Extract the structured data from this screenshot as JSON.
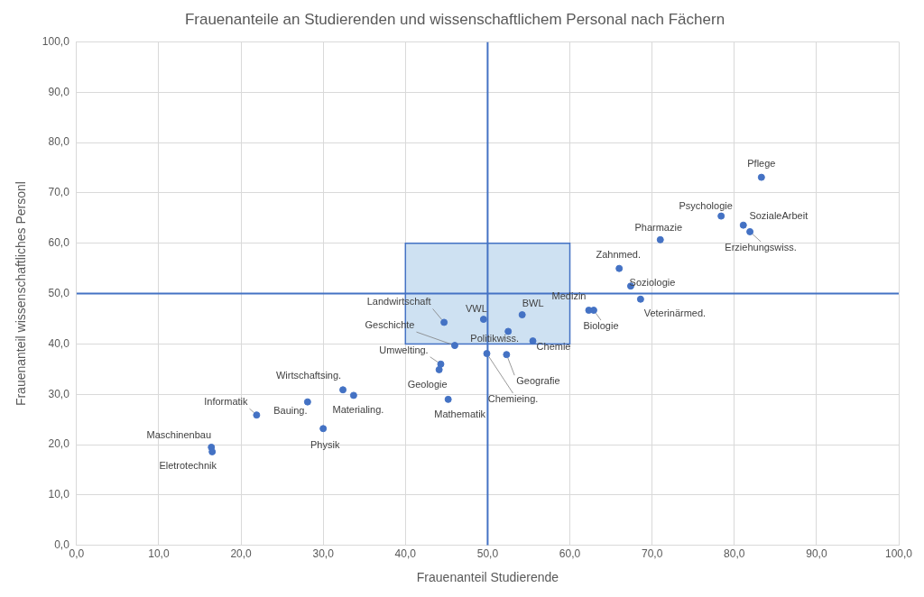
{
  "chart_data": {
    "type": "scatter",
    "title": "Frauenanteile an Studierenden und wissenschaftlichem Personal nach Fächern",
    "x_label": "Frauenanteil Studierende",
    "y_label": "Frauenanteil wissenschaftliches Personl",
    "color": "#4472c4",
    "marker": "circle",
    "grid": true,
    "labels": [
      "Pflege",
      "Psychologie",
      "SozialeArbeit",
      "Erziehungswiss.",
      "Pharmazie",
      "Zahnmed.",
      "Soziologie",
      "Veterinärmed.",
      "Medizin",
      "Biologie",
      "Landwirtschaft",
      "VWL",
      "BWL",
      "Geschichte",
      "Politikwiss.",
      "Chemie",
      "Umwelting.",
      "Geologie",
      "Geografie",
      "Chemieing.",
      "Mathematik",
      "Wirtschaftsing.",
      "Materialing.",
      "Bauing.",
      "Physik",
      "Informatik",
      "Maschinenbau",
      "Eletrotechnik"
    ],
    "x": [
      83.3,
      78.4,
      81.1,
      81.9,
      71.0,
      66.0,
      67.4,
      68.6,
      62.3,
      62.9,
      44.7,
      49.5,
      54.2,
      46.0,
      52.5,
      55.5,
      44.3,
      44.1,
      52.3,
      49.9,
      45.2,
      32.4,
      33.7,
      28.1,
      30.0,
      21.9,
      16.4,
      16.5
    ],
    "values": [
      73.1,
      65.4,
      63.6,
      62.3,
      60.7,
      55.0,
      51.5,
      48.9,
      46.7,
      46.7,
      44.3,
      44.9,
      45.8,
      39.7,
      42.5,
      40.6,
      36.0,
      34.9,
      37.9,
      38.1,
      29.0,
      30.9,
      29.8,
      28.5,
      23.2,
      25.9,
      19.5,
      18.6
    ],
    "reference_lines": {
      "x": 50,
      "y": 50
    },
    "box": {
      "xlim": [
        40,
        60
      ],
      "ylim": [
        40,
        60
      ]
    },
    "xlim": [
      0,
      100
    ],
    "ylim": [
      0,
      100
    ],
    "xticks": [
      {
        "value": 0,
        "label": "0,0"
      },
      {
        "value": 10,
        "label": "10,0"
      },
      {
        "value": 20,
        "label": "20,0"
      },
      {
        "value": 30,
        "label": "30,0"
      },
      {
        "value": 40,
        "label": "40,0"
      },
      {
        "value": 50,
        "label": "50,0"
      },
      {
        "value": 60,
        "label": "60,0"
      },
      {
        "value": 70,
        "label": "70,0"
      },
      {
        "value": 80,
        "label": "80,0"
      },
      {
        "value": 90,
        "label": "90,0"
      },
      {
        "value": 100,
        "label": "100,0"
      }
    ],
    "yticks": [
      {
        "value": 0,
        "label": "0,0"
      },
      {
        "value": 10,
        "label": "10,0"
      },
      {
        "value": 20,
        "label": "20,0"
      },
      {
        "value": 30,
        "label": "30,0"
      },
      {
        "value": 40,
        "label": "40,0"
      },
      {
        "value": 50,
        "label": "50,0"
      },
      {
        "value": 60,
        "label": "60,0"
      },
      {
        "value": 70,
        "label": "70,0"
      },
      {
        "value": 80,
        "label": "80,0"
      },
      {
        "value": 90,
        "label": "90,0"
      },
      {
        "value": 100,
        "label": "100,0"
      }
    ]
  }
}
